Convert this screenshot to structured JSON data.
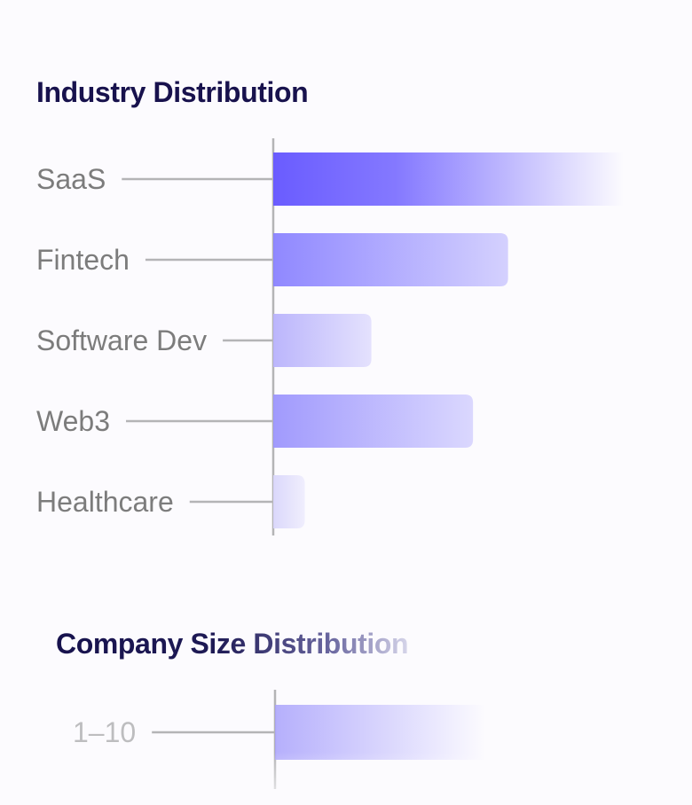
{
  "chart_data": [
    {
      "type": "bar",
      "orientation": "horizontal",
      "title": "Industry Distribution",
      "categories": [
        "SaaS",
        "Fintech",
        "Software Dev",
        "Web3",
        "Healthcare"
      ],
      "values": [
        100,
        67,
        28,
        57,
        9
      ],
      "xlim": [
        0,
        100
      ],
      "grid": false,
      "colors": [
        "#6a5cff",
        "#8a82ff",
        "#b8b2fc",
        "#9c95fd",
        "#d9d6fb"
      ]
    },
    {
      "type": "bar",
      "orientation": "horizontal",
      "title": "Company Size Distribution",
      "categories": [
        "1–10"
      ],
      "values": [
        60
      ],
      "xlim": [
        0,
        100
      ],
      "grid": false,
      "colors": [
        "#a9a2fc"
      ]
    }
  ]
}
